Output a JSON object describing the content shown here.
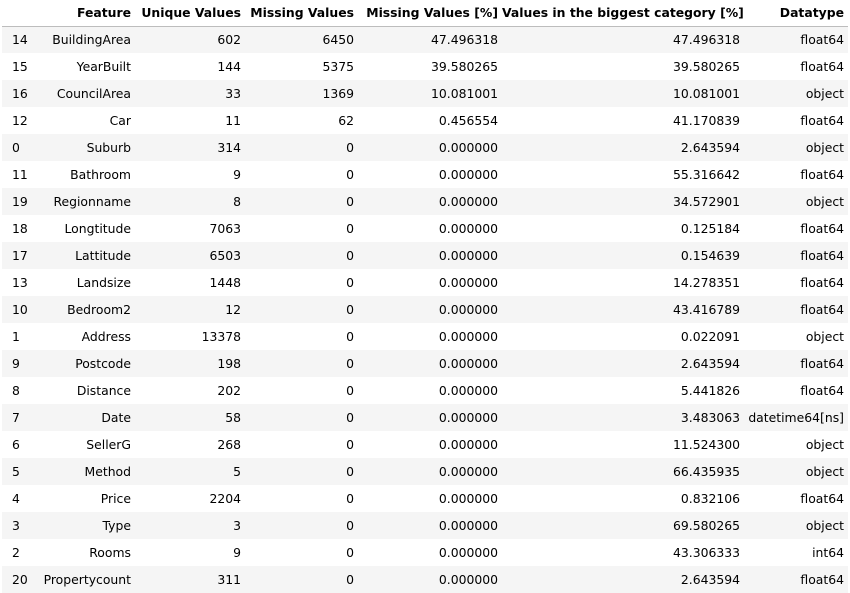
{
  "table": {
    "columns": [
      "",
      "Feature",
      "Unique Values",
      "Missing Values",
      "Missing Values [%]",
      "Values in the biggest category [%]",
      "Datatype"
    ],
    "rows": [
      [
        "14",
        "BuildingArea",
        "602",
        "6450",
        "47.496318",
        "47.496318",
        "float64"
      ],
      [
        "15",
        "YearBuilt",
        "144",
        "5375",
        "39.580265",
        "39.580265",
        "float64"
      ],
      [
        "16",
        "CouncilArea",
        "33",
        "1369",
        "10.081001",
        "10.081001",
        "object"
      ],
      [
        "12",
        "Car",
        "11",
        "62",
        "0.456554",
        "41.170839",
        "float64"
      ],
      [
        "0",
        "Suburb",
        "314",
        "0",
        "0.000000",
        "2.643594",
        "object"
      ],
      [
        "11",
        "Bathroom",
        "9",
        "0",
        "0.000000",
        "55.316642",
        "float64"
      ],
      [
        "19",
        "Regionname",
        "8",
        "0",
        "0.000000",
        "34.572901",
        "object"
      ],
      [
        "18",
        "Longtitude",
        "7063",
        "0",
        "0.000000",
        "0.125184",
        "float64"
      ],
      [
        "17",
        "Lattitude",
        "6503",
        "0",
        "0.000000",
        "0.154639",
        "float64"
      ],
      [
        "13",
        "Landsize",
        "1448",
        "0",
        "0.000000",
        "14.278351",
        "float64"
      ],
      [
        "10",
        "Bedroom2",
        "12",
        "0",
        "0.000000",
        "43.416789",
        "float64"
      ],
      [
        "1",
        "Address",
        "13378",
        "0",
        "0.000000",
        "0.022091",
        "object"
      ],
      [
        "9",
        "Postcode",
        "198",
        "0",
        "0.000000",
        "2.643594",
        "float64"
      ],
      [
        "8",
        "Distance",
        "202",
        "0",
        "0.000000",
        "5.441826",
        "float64"
      ],
      [
        "7",
        "Date",
        "58",
        "0",
        "0.000000",
        "3.483063",
        "datetime64[ns]"
      ],
      [
        "6",
        "SellerG",
        "268",
        "0",
        "0.000000",
        "11.524300",
        "object"
      ],
      [
        "5",
        "Method",
        "5",
        "0",
        "0.000000",
        "66.435935",
        "object"
      ],
      [
        "4",
        "Price",
        "2204",
        "0",
        "0.000000",
        "0.832106",
        "float64"
      ],
      [
        "3",
        "Type",
        "3",
        "0",
        "0.000000",
        "69.580265",
        "object"
      ],
      [
        "2",
        "Rooms",
        "9",
        "0",
        "0.000000",
        "43.306333",
        "int64"
      ],
      [
        "20",
        "Propertycount",
        "311",
        "0",
        "0.000000",
        "2.643594",
        "float64"
      ]
    ]
  }
}
